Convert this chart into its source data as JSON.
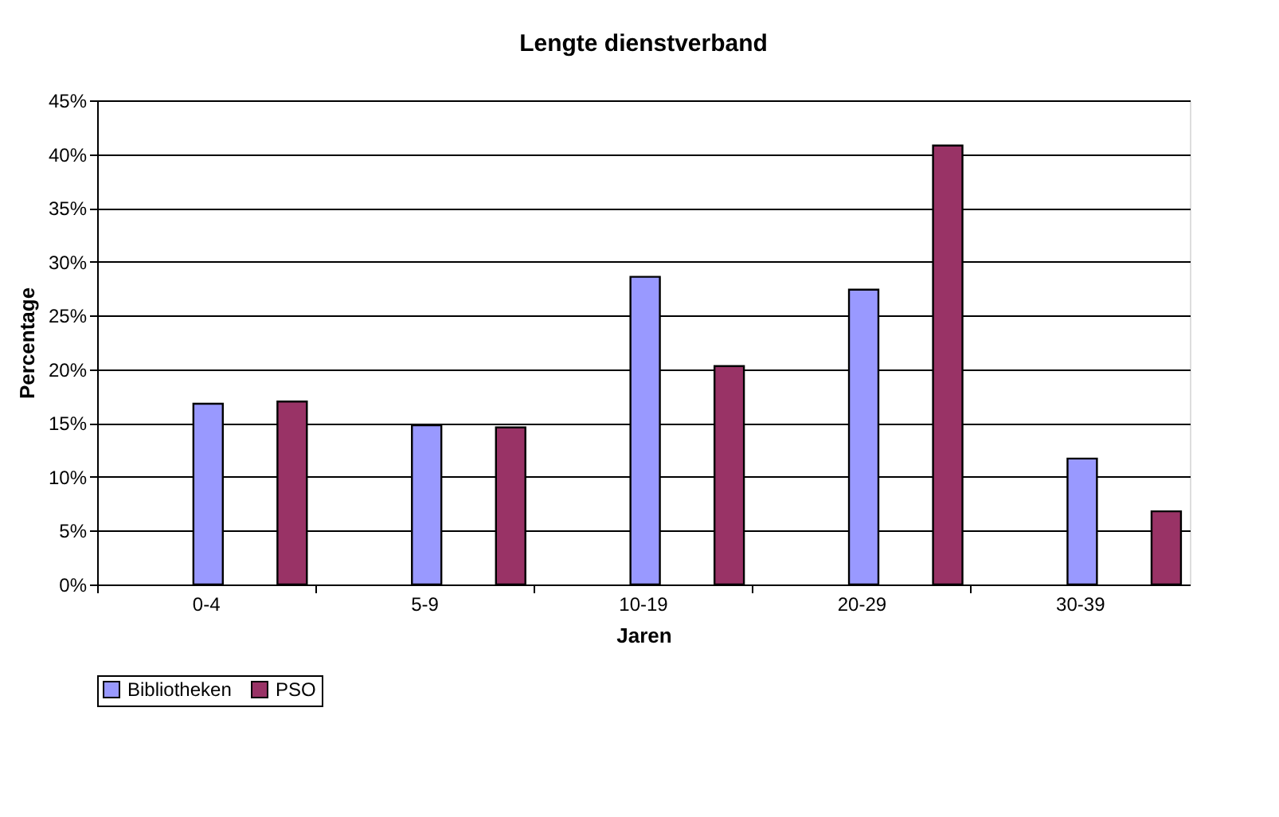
{
  "chart_data": {
    "type": "bar",
    "title": "Lengte dienstverband",
    "xlabel": "Jaren",
    "ylabel": "Percentage",
    "categories": [
      "0-4",
      "5-9",
      "10-19",
      "20-29",
      "30-39"
    ],
    "series": [
      {
        "name": "Bibliotheken",
        "color": "#9999ff",
        "values": [
          16.8,
          14.8,
          28.6,
          27.4,
          11.7
        ]
      },
      {
        "name": "PSO",
        "color": "#993366",
        "values": [
          17.0,
          14.6,
          20.3,
          40.8,
          6.8
        ]
      }
    ],
    "ylim": [
      0,
      45
    ],
    "yticks": [
      {
        "value": 0,
        "label": "0%"
      },
      {
        "value": 5,
        "label": "5%"
      },
      {
        "value": 10,
        "label": "10%"
      },
      {
        "value": 15,
        "label": "15%"
      },
      {
        "value": 20,
        "label": "20%"
      },
      {
        "value": 25,
        "label": "25%"
      },
      {
        "value": 30,
        "label": "30%"
      },
      {
        "value": 35,
        "label": "35%"
      },
      {
        "value": 40,
        "label": "40%"
      },
      {
        "value": 45,
        "label": "45%"
      }
    ],
    "grid": "y",
    "legend": "bottom"
  }
}
